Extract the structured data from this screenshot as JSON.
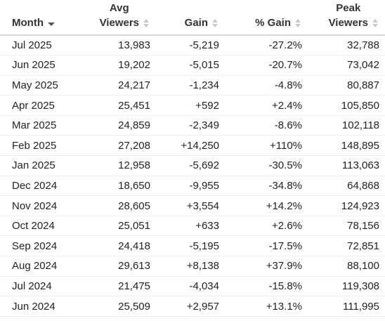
{
  "headers": {
    "month": "Month",
    "avg_line1": "Avg",
    "avg_line2": "Viewers",
    "gain": "Gain",
    "pct_gain": "% Gain",
    "peak_line1": "Peak",
    "peak_line2": "Viewers"
  },
  "colors": {
    "positive": "#2a8c1e",
    "negative": "#d42020"
  },
  "rows": [
    {
      "month": "Jul 2025",
      "avg": "13,983",
      "gain": "-5,219",
      "pct": "-27.2%",
      "peak": "32,788",
      "sign": "neg"
    },
    {
      "month": "Jun 2025",
      "avg": "19,202",
      "gain": "-5,015",
      "pct": "-20.7%",
      "peak": "73,042",
      "sign": "neg"
    },
    {
      "month": "May 2025",
      "avg": "24,217",
      "gain": "-1,234",
      "pct": "-4.8%",
      "peak": "80,887",
      "sign": "neg"
    },
    {
      "month": "Apr 2025",
      "avg": "25,451",
      "gain": "+592",
      "pct": "+2.4%",
      "peak": "105,850",
      "sign": "pos"
    },
    {
      "month": "Mar 2025",
      "avg": "24,859",
      "gain": "-2,349",
      "pct": "-8.6%",
      "peak": "102,118",
      "sign": "neg"
    },
    {
      "month": "Feb 2025",
      "avg": "27,208",
      "gain": "+14,250",
      "pct": "+110%",
      "peak": "148,895",
      "sign": "pos"
    },
    {
      "month": "Jan 2025",
      "avg": "12,958",
      "gain": "-5,692",
      "pct": "-30.5%",
      "peak": "113,063",
      "sign": "neg"
    },
    {
      "month": "Dec 2024",
      "avg": "18,650",
      "gain": "-9,955",
      "pct": "-34.8%",
      "peak": "64,868",
      "sign": "neg"
    },
    {
      "month": "Nov 2024",
      "avg": "28,605",
      "gain": "+3,554",
      "pct": "+14.2%",
      "peak": "124,923",
      "sign": "pos"
    },
    {
      "month": "Oct 2024",
      "avg": "25,051",
      "gain": "+633",
      "pct": "+2.6%",
      "peak": "78,156",
      "sign": "pos"
    },
    {
      "month": "Sep 2024",
      "avg": "24,418",
      "gain": "-5,195",
      "pct": "-17.5%",
      "peak": "72,851",
      "sign": "neg"
    },
    {
      "month": "Aug 2024",
      "avg": "29,613",
      "gain": "+8,138",
      "pct": "+37.9%",
      "peak": "88,100",
      "sign": "pos"
    },
    {
      "month": "Jul 2024",
      "avg": "21,475",
      "gain": "-4,034",
      "pct": "-15.8%",
      "peak": "119,308",
      "sign": "neg"
    },
    {
      "month": "Jun 2024",
      "avg": "25,509",
      "gain": "+2,957",
      "pct": "+13.1%",
      "peak": "111,995",
      "sign": "pos"
    }
  ]
}
